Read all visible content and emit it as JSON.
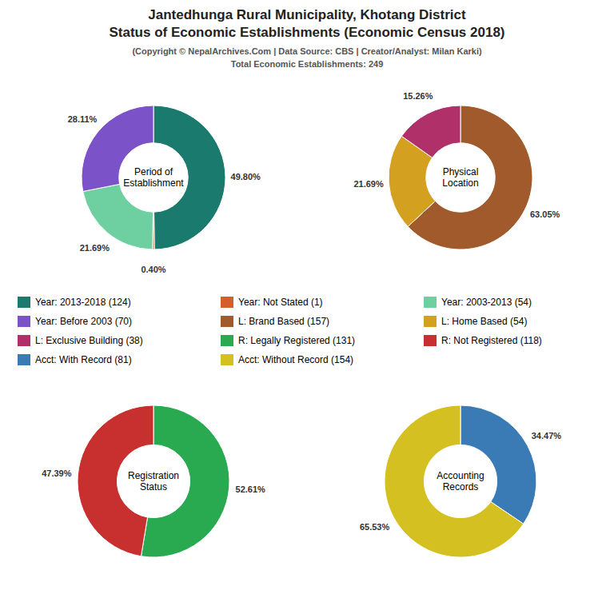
{
  "title": [
    "Jantedhunga Rural Municipality, Khotang District",
    "Status of Economic Establishments (Economic Census 2018)"
  ],
  "subtitle": [
    "(Copyright © NepalArchives.Com | Data Source: CBS | Creator/Analyst: Milan Karki)",
    "Total Economic Establishments: 249"
  ],
  "chart_data": [
    {
      "type": "pie",
      "title": "Period of\nEstablishment",
      "categories": [
        "Year: 2013-2018 (124)",
        "Year: Not Stated (1)",
        "Year: 2003-2013 (54)",
        "Year: Before 2003 (70)"
      ],
      "values": [
        49.8,
        0.4,
        21.69,
        28.11
      ],
      "value_labels": [
        "49.80%",
        "0.40%",
        "21.69%",
        "28.11%"
      ],
      "colors": [
        "#1a7a6e",
        "#d45f2a",
        "#6ecfa0",
        "#7b52c8"
      ],
      "data_labels": true
    },
    {
      "type": "pie",
      "title": "Physical\nLocation",
      "categories": [
        "L: Brand Based (157)",
        "L: Home Based (54)",
        "L: Exclusive Building (38)"
      ],
      "values": [
        63.05,
        21.69,
        15.26
      ],
      "value_labels": [
        "63.05%",
        "21.69%",
        "15.26%"
      ],
      "colors": [
        "#a05a2c",
        "#d4a020",
        "#b0306a"
      ],
      "data_labels": true
    },
    {
      "type": "pie",
      "title": "Registration\nStatus",
      "categories": [
        "R: Legally Registered (131)",
        "R: Not Registered (118)"
      ],
      "values": [
        52.61,
        47.39
      ],
      "value_labels": [
        "52.61%",
        "47.39%"
      ],
      "colors": [
        "#2aaa50",
        "#c83030"
      ],
      "data_labels": true
    },
    {
      "type": "pie",
      "title": "Accounting\nRecords",
      "categories": [
        "Acct: With Record (81)",
        "Acct: Without Record (154)"
      ],
      "values": [
        34.47,
        65.53
      ],
      "value_labels": [
        "34.47%",
        "65.53%"
      ],
      "colors": [
        "#3a7ab5",
        "#d4c020"
      ],
      "data_labels": true
    }
  ]
}
